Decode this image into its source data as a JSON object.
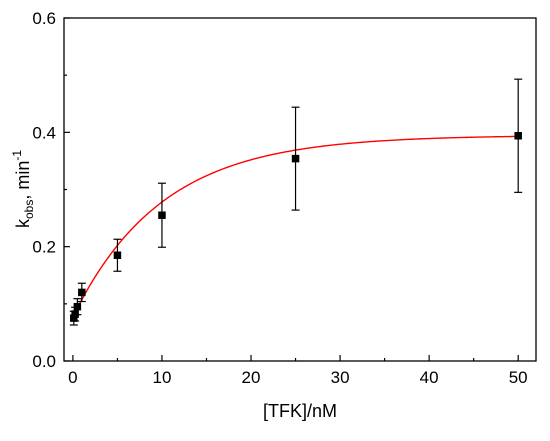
{
  "chart_data": {
    "type": "scatter",
    "title": "",
    "xlabel": "[TFK]/nM",
    "ylabel": {
      "main": "k",
      "subscript": "obs",
      "suffix": ", min",
      "superscript": "-1"
    },
    "xlim": [
      -1,
      52
    ],
    "ylim": [
      0,
      0.6
    ],
    "x_ticks": [
      0,
      10,
      20,
      30,
      40,
      50
    ],
    "y_ticks": [
      0.0,
      0.2,
      0.4,
      0.6
    ],
    "x_tick_labels": [
      "0",
      "10",
      "20",
      "30",
      "40",
      "50"
    ],
    "y_tick_labels": [
      "0.0",
      "0.2",
      "0.4",
      "0.6"
    ],
    "grid": false,
    "legend": "none",
    "series": [
      {
        "kind": "points_with_error_bars",
        "marker": "square",
        "color": "#000000",
        "points": [
          {
            "x": 0.1,
            "y": 0.075,
            "err": 0.012
          },
          {
            "x": 0.25,
            "y": 0.082,
            "err": 0.012
          },
          {
            "x": 0.5,
            "y": 0.095,
            "err": 0.014
          },
          {
            "x": 1,
            "y": 0.12,
            "err": 0.016
          },
          {
            "x": 5,
            "y": 0.185,
            "err": 0.028
          },
          {
            "x": 10,
            "y": 0.255,
            "err": 0.056
          },
          {
            "x": 25,
            "y": 0.354,
            "err": 0.09
          },
          {
            "x": 50,
            "y": 0.394,
            "err": 0.099
          }
        ]
      },
      {
        "kind": "fit_curve",
        "color": "#ff0000",
        "model": "exponential_rise",
        "y0": 0.077,
        "amplitude": 0.318,
        "rate": 0.1,
        "x_range": [
          0,
          50
        ]
      }
    ]
  }
}
